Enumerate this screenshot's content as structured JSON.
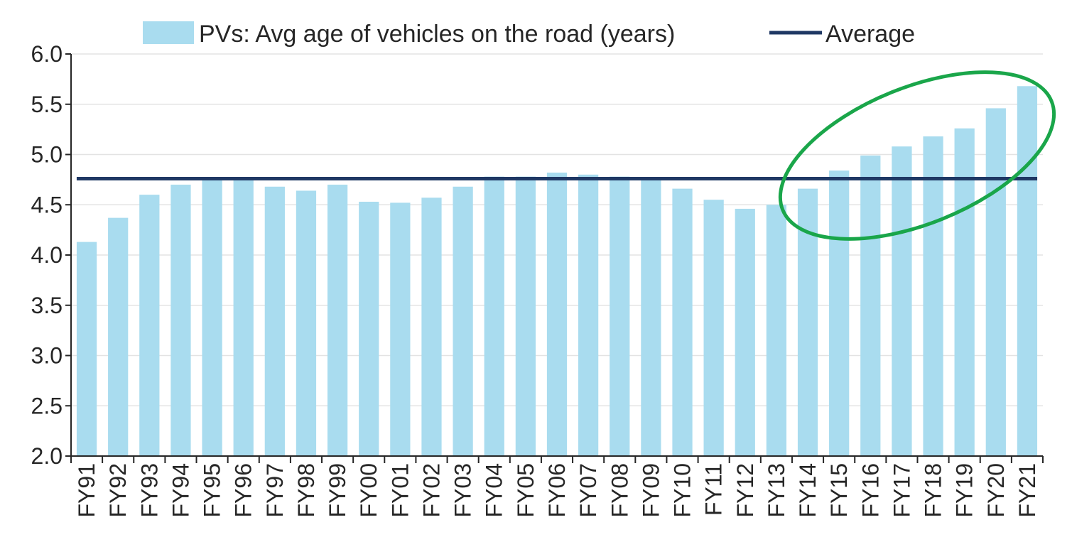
{
  "chart_data": {
    "type": "bar",
    "categories": [
      "FY91",
      "FY92",
      "FY93",
      "FY94",
      "FY95",
      "FY96",
      "FY97",
      "FY98",
      "FY99",
      "FY00",
      "FY01",
      "FY02",
      "FY03",
      "FY04",
      "FY05",
      "FY06",
      "FY07",
      "FY08",
      "FY09",
      "FY10",
      "FY11",
      "FY12",
      "FY13",
      "FY14",
      "FY15",
      "FY16",
      "FY17",
      "FY18",
      "FY19",
      "FY20",
      "FY21"
    ],
    "series": [
      {
        "name": "PVs: Avg age of vehicles on the road (years)",
        "color": "#a9dcef",
        "values": [
          4.13,
          4.37,
          4.6,
          4.7,
          4.76,
          4.76,
          4.68,
          4.64,
          4.7,
          4.53,
          4.52,
          4.57,
          4.68,
          4.78,
          4.78,
          4.82,
          4.8,
          4.78,
          4.77,
          4.66,
          4.55,
          4.46,
          4.5,
          4.66,
          4.84,
          4.99,
          5.08,
          5.18,
          5.26,
          5.46,
          5.68
        ]
      }
    ],
    "average": {
      "name": "Average",
      "value": 4.76,
      "color": "#1f3864"
    },
    "ylim": [
      2.0,
      6.0
    ],
    "yticks": [
      "2.0",
      "2.5",
      "3.0",
      "3.5",
      "4.0",
      "4.5",
      "5.0",
      "5.5",
      "6.0"
    ],
    "grid": true,
    "legend": "top-center",
    "annotation": {
      "shape": "ellipse",
      "color": "#1aa64a",
      "encloses": [
        "FY14",
        "FY21"
      ]
    },
    "title": "",
    "xlabel": "",
    "ylabel": ""
  }
}
